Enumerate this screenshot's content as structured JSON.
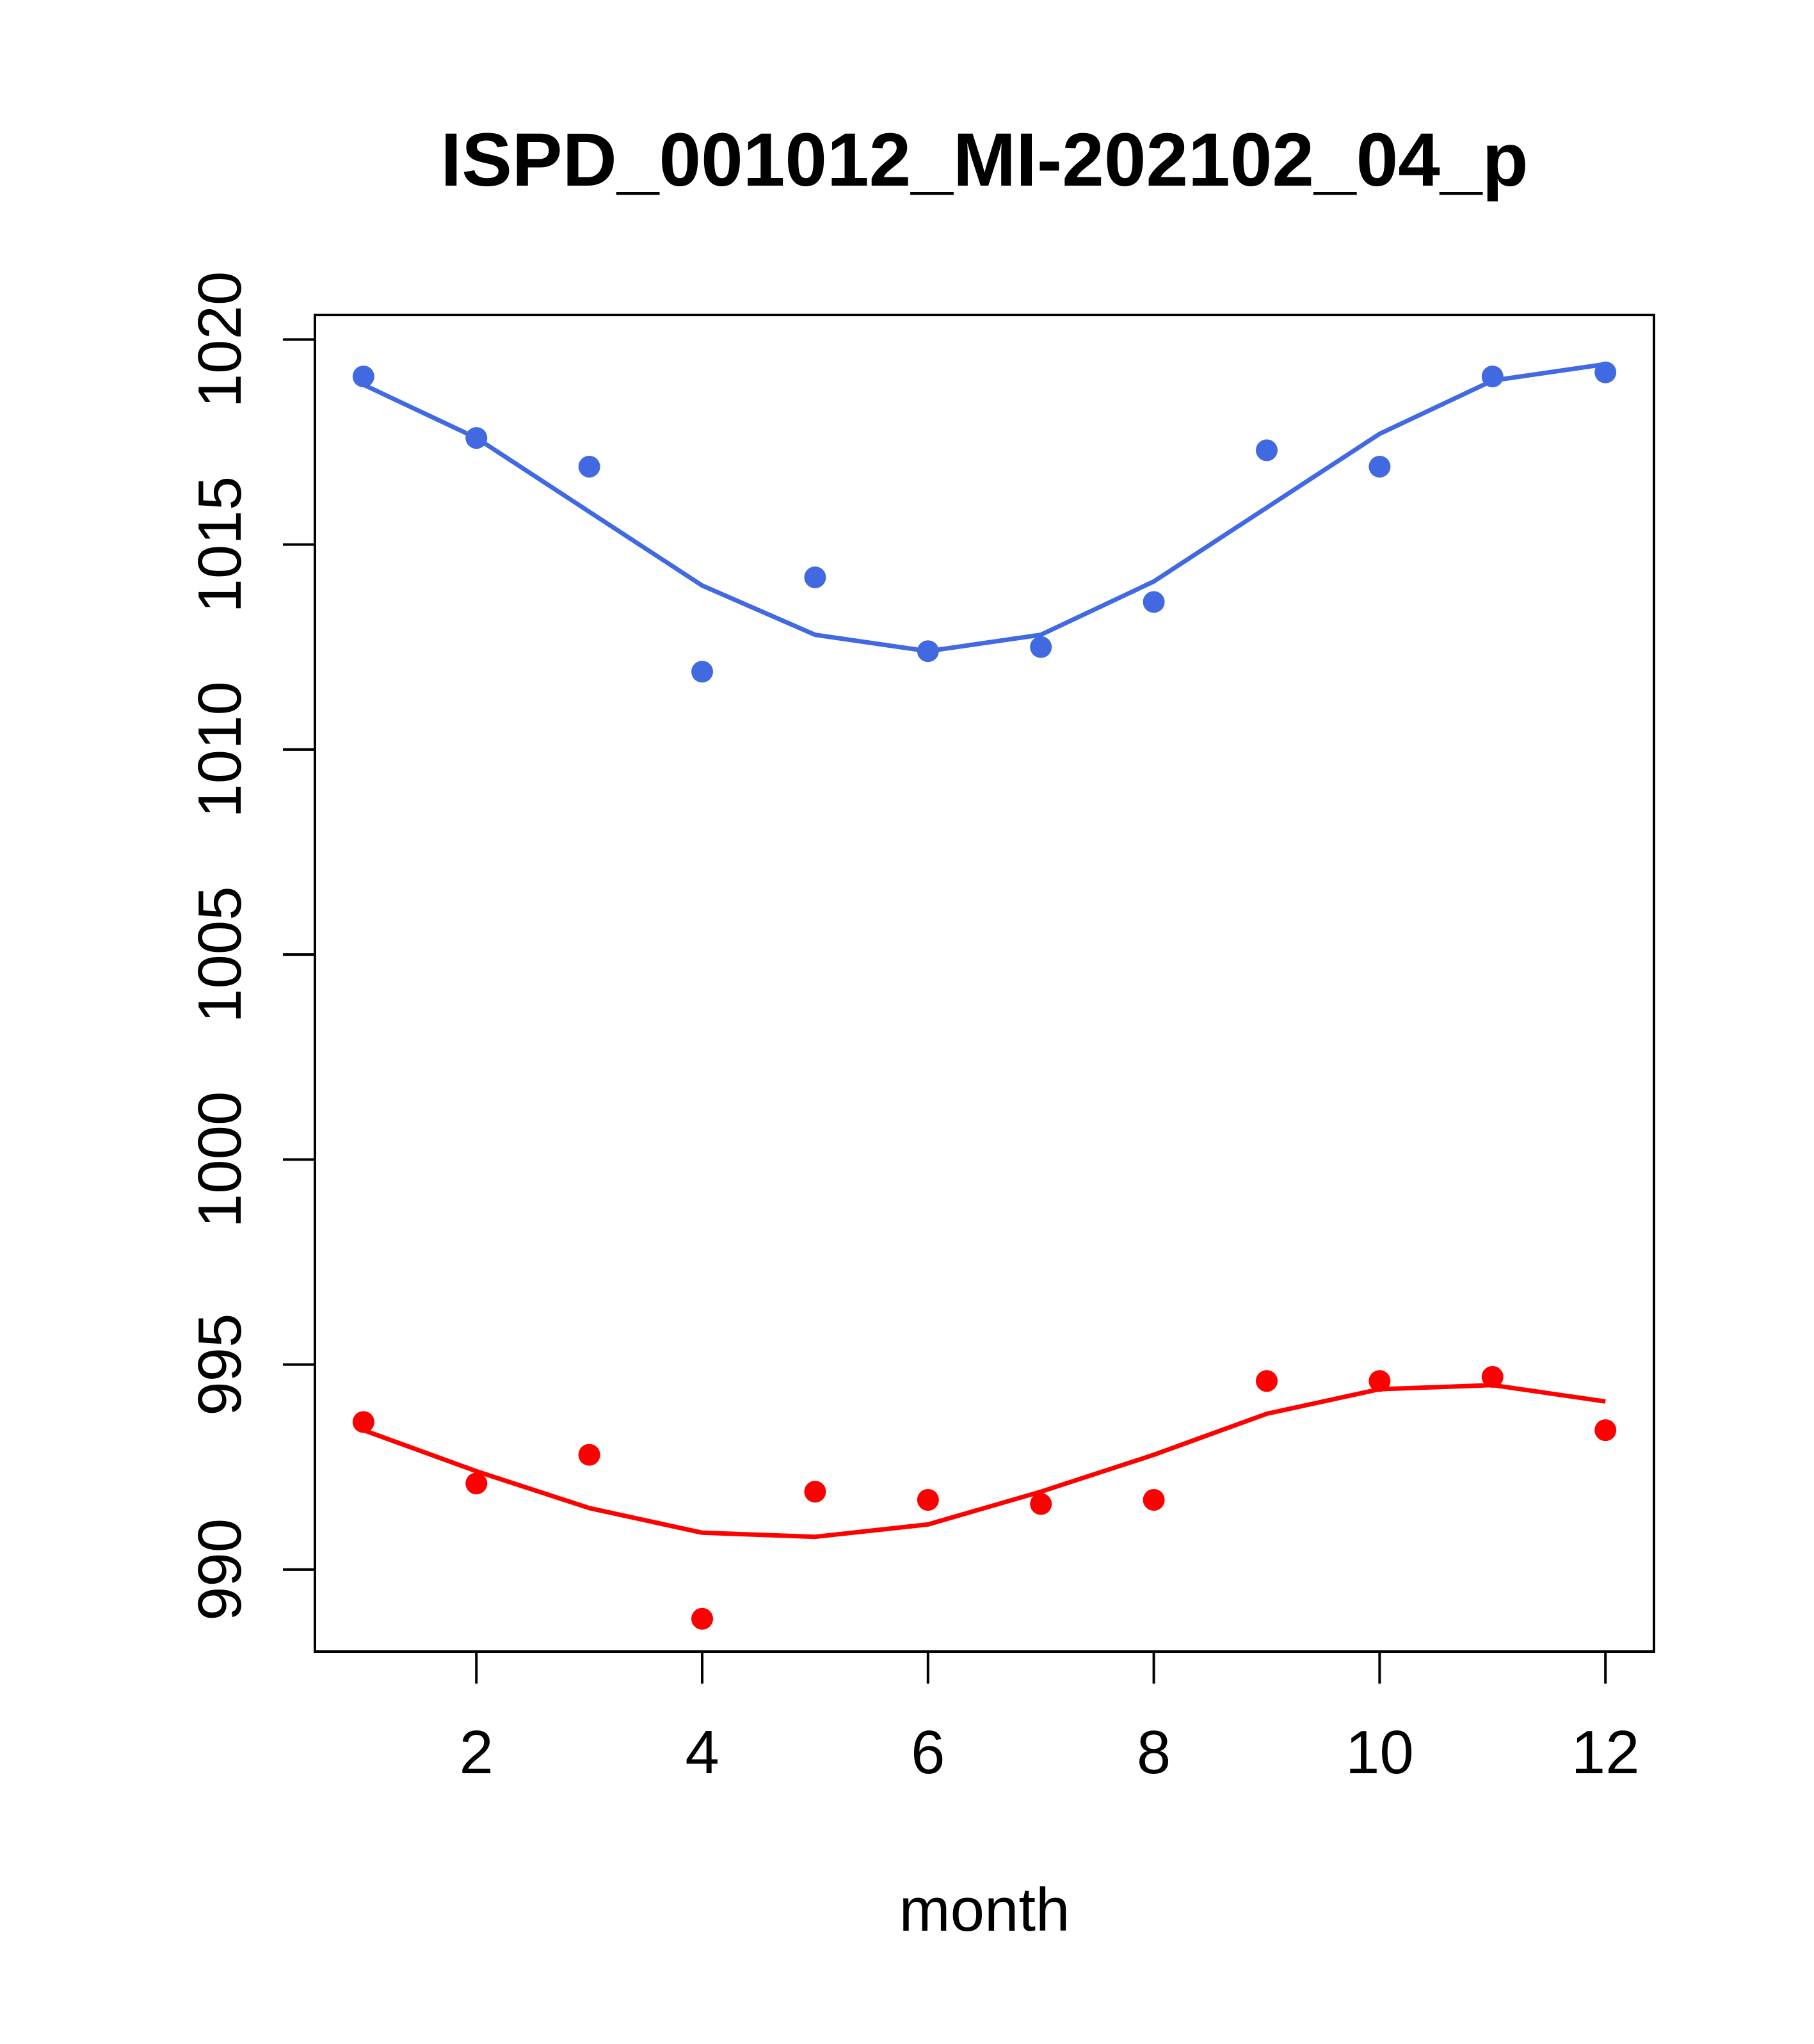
{
  "chart_data": {
    "type": "scatter",
    "title": "ISPD_001012_MI-202102_04_p",
    "xlabel": "month",
    "ylabel": "",
    "xlim": [
      0.57,
      12.43
    ],
    "ylim": [
      988.0,
      1020.6
    ],
    "x_ticks": [
      2,
      4,
      6,
      8,
      10,
      12
    ],
    "y_ticks": [
      990,
      995,
      1000,
      1005,
      1010,
      1015,
      1020
    ],
    "x_tick_labels": [
      "2",
      "4",
      "6",
      "8",
      "10",
      "12"
    ],
    "y_tick_labels": [
      "990",
      "995",
      "1000",
      "1005",
      "1010",
      "1015",
      "1020"
    ],
    "grid": false,
    "legend": "none",
    "x": [
      1,
      2,
      3,
      4,
      5,
      6,
      7,
      8,
      9,
      10,
      11,
      12
    ],
    "series": [
      {
        "color": "#4169E1",
        "points": [
          1019.1,
          1017.6,
          1016.9,
          1011.9,
          1014.2,
          1012.4,
          1012.5,
          1013.6,
          1017.3,
          1016.9,
          1019.1,
          1019.2
        ],
        "fitted": [
          1018.9,
          1017.6,
          1015.8,
          1014.0,
          1012.8,
          1012.4,
          1012.8,
          1014.1,
          1015.9,
          1017.7,
          1019.0,
          1019.4
        ]
      },
      {
        "color": "#FF0000",
        "points": [
          993.6,
          992.1,
          992.8,
          988.8,
          991.9,
          991.7,
          991.6,
          991.7,
          994.6,
          994.6,
          994.7,
          993.4
        ],
        "fitted": [
          993.4,
          992.4,
          991.5,
          990.9,
          990.8,
          991.1,
          991.9,
          992.8,
          993.8,
          994.4,
          994.5,
          994.1
        ]
      }
    ]
  }
}
